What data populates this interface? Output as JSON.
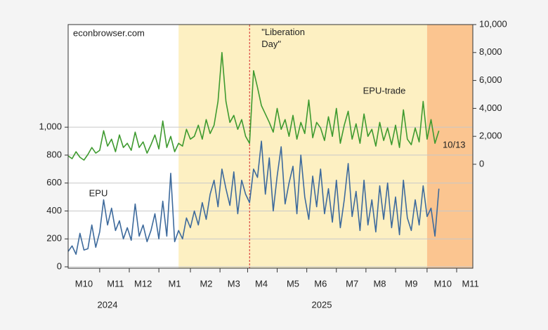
{
  "chart_data": {
    "type": "line",
    "source": "econbrowser.com",
    "categories": [
      null,
      null,
      null,
      null,
      "M10",
      null,
      null,
      null,
      null,
      null,
      null,
      null,
      "M11",
      null,
      null,
      null,
      null,
      null,
      null,
      "M12",
      null,
      null,
      null,
      null,
      null,
      null,
      null,
      "M1",
      null,
      null,
      null,
      null,
      null,
      null,
      null,
      "M2",
      null,
      null,
      null,
      null,
      null,
      null,
      "M3",
      null,
      null,
      null,
      null,
      null,
      null,
      "M4",
      null,
      null,
      null,
      null,
      null,
      null,
      null,
      "M5",
      null,
      null,
      null,
      null,
      null,
      null,
      "M6",
      null,
      null,
      null,
      null,
      null,
      null,
      null,
      "M7",
      null,
      null,
      null,
      null,
      null,
      null,
      "M8",
      null,
      null,
      null,
      null,
      null,
      null,
      null,
      "M9",
      null,
      null,
      null,
      null,
      null,
      null,
      null,
      "M10",
      null,
      null,
      null,
      null,
      null,
      null,
      "M11"
    ],
    "years": [
      "2024",
      "2025"
    ],
    "series": [
      {
        "name": "EPU",
        "color": "#3d6a9c",
        "axis": "y",
        "values": [
          110,
          150,
          90,
          240,
          120,
          130,
          300,
          140,
          250,
          480,
          300,
          420,
          260,
          330,
          200,
          280,
          190,
          450,
          220,
          300,
          180,
          260,
          380,
          200,
          470,
          220,
          670,
          180,
          260,
          200,
          350,
          280,
          400,
          300,
          460,
          340,
          520,
          620,
          430,
          700,
          560,
          440,
          680,
          380,
          620,
          520,
          460,
          700,
          640,
          900,
          520,
          780,
          400,
          650,
          860,
          450,
          600,
          720,
          380,
          800,
          500,
          340,
          650,
          430,
          700,
          380,
          560,
          320,
          620,
          280,
          480,
          740,
          360,
          540,
          260,
          620,
          300,
          480,
          250,
          580,
          340,
          600,
          280,
          500,
          230,
          620,
          350,
          260,
          480,
          300,
          580,
          360,
          420,
          220,
          560,
          null,
          null,
          null,
          null,
          null,
          null,
          null,
          null
        ]
      },
      {
        "name": "EPU-trade",
        "color": "#3e9a2f",
        "axis": "y2",
        "values": [
          600,
          400,
          900,
          500,
          300,
          700,
          1200,
          800,
          1000,
          2400,
          1300,
          1800,
          900,
          2100,
          1200,
          1500,
          1000,
          2300,
          1200,
          1600,
          800,
          1400,
          2100,
          1100,
          3100,
          1200,
          2000,
          900,
          1500,
          1300,
          2500,
          1800,
          2000,
          2800,
          1800,
          3200,
          2200,
          2800,
          4500,
          8000,
          4500,
          3000,
          3500,
          2500,
          3200,
          2000,
          1500,
          6700,
          5500,
          4200,
          3600,
          3000,
          2300,
          4000,
          2500,
          3200,
          2000,
          3500,
          1800,
          3000,
          2200,
          4600,
          1900,
          3000,
          2600,
          1700,
          3400,
          2000,
          4000,
          1500,
          2800,
          3800,
          1800,
          2900,
          1500,
          3600,
          2000,
          2500,
          1300,
          3000,
          1700,
          2600,
          1400,
          2800,
          1200,
          3900,
          1800,
          1400,
          2600,
          1600,
          4500,
          1800,
          3200,
          1500,
          2400,
          null,
          null,
          null,
          null,
          null,
          null,
          null,
          null
        ]
      }
    ],
    "end_label": "10/13",
    "vline": {
      "index": 46,
      "label": "\"Liberation Day\"",
      "color": "#d62728",
      "label_color": "#f0943a"
    },
    "shaded_spans": [
      {
        "from": 28,
        "to": 91,
        "color": "#fdf0c2"
      },
      {
        "from": 91,
        "to": 102.6,
        "color": "#fbc590"
      }
    ],
    "xlim": [
      0,
      102.6
    ],
    "ylim": [
      -10,
      1735
    ],
    "yticks": [
      0,
      200,
      400,
      600,
      800,
      {
        "value": 1000,
        "label": "1,000"
      }
    ],
    "y2lim": [
      -7440,
      10000
    ],
    "y2ticks": [
      0,
      {
        "value": 2000,
        "label": "2,000"
      },
      {
        "value": 4000,
        "label": "4,000"
      },
      {
        "value": 6000,
        "label": "6,000"
      },
      {
        "value": 8000,
        "label": "8,000"
      },
      {
        "value": 10000,
        "label": "10,000"
      }
    ],
    "grid": true
  }
}
